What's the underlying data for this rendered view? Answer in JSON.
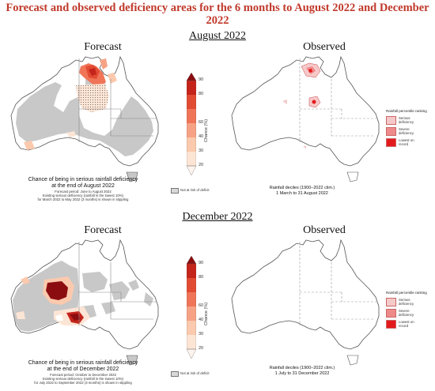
{
  "main_title": "Forecast and observed deficiency areas for the 6 months to August 2022 and December 2022",
  "sections": [
    {
      "title": "August 2022",
      "forecast": {
        "title": "Forecast",
        "caption_main_1": "Chance of being in serious rainfall deficiency",
        "caption_main_2": "at the end of August 2022",
        "caption_sub_1": "Forecast period: June to August 2022",
        "caption_sub_2": "Existing serious deficiency (rainfall in the lowest 10%)",
        "caption_sub_3": "for March 2022 to May 2022 (3 months) is shown in stippling"
      },
      "observed": {
        "title": "Observed",
        "caption_1": "Rainfall deciles (1900–2022 clim.)",
        "caption_2": "1 March to 31 August 2022"
      }
    },
    {
      "title": "December 2022",
      "forecast": {
        "title": "Forecast",
        "caption_main_1": "Chance of being in serious rainfall deficiency",
        "caption_main_2": "at the end of December 2022",
        "caption_sub_1": "Forecast period: October to December 2022",
        "caption_sub_2": "Existing serious deficiency (rainfall in the lowest 10%)",
        "caption_sub_3": "for July 2022 to September 2022 (3 months) is shown in stippling"
      },
      "observed": {
        "title": "Observed",
        "caption_1": "Rainfall deciles (1900–2022 clim.)",
        "caption_2": "1 July to 31 December 2022"
      }
    }
  ],
  "colorbar": {
    "label": "Chance (%)",
    "ticks": [
      "90",
      "80",
      "60",
      "40",
      "30",
      "20"
    ],
    "not_at_risk": "Not at risk of deficit",
    "colors": [
      "#fde5d5",
      "#fbc9ad",
      "#f7a285",
      "#f07558",
      "#e24b33",
      "#c5241b",
      "#8b0d10"
    ]
  },
  "rank_legend": {
    "title": "Rainfall percentile ranking",
    "items": [
      {
        "label_1": "Serious",
        "label_2": "deficiency",
        "color": "#f6c9c9"
      },
      {
        "label_1": "Severe",
        "label_2": "deficiency",
        "color": "#ef8a8a"
      },
      {
        "label_1": "Lowest on",
        "label_2": "record",
        "color": "#e31a1c"
      }
    ]
  },
  "map_colors": {
    "not_at_risk": "#c8c8c8",
    "coast": "#555555",
    "borders": "#888888"
  }
}
